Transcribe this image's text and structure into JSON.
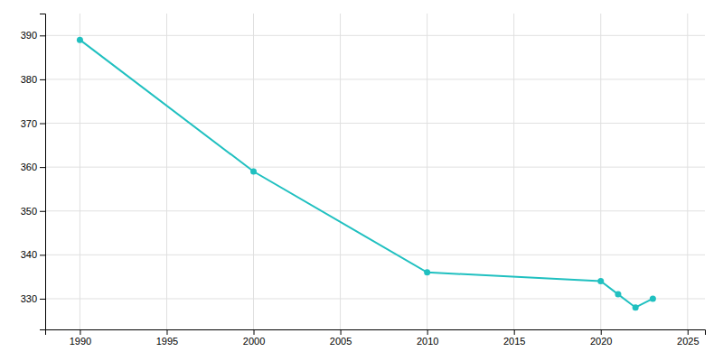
{
  "chart_data": {
    "type": "line",
    "x": [
      1990,
      2000,
      2010,
      2020,
      2021,
      2022,
      2023
    ],
    "values": [
      389,
      359,
      336,
      334,
      331,
      328,
      330
    ],
    "color": "#20c0c0",
    "marker": "circle",
    "xlim": [
      1988,
      2026
    ],
    "ylim": [
      323,
      395
    ],
    "xticks": [
      1990,
      1995,
      2000,
      2005,
      2010,
      2015,
      2020,
      2025
    ],
    "yticks": [
      330,
      340,
      350,
      360,
      370,
      380,
      390
    ],
    "grid": true
  }
}
